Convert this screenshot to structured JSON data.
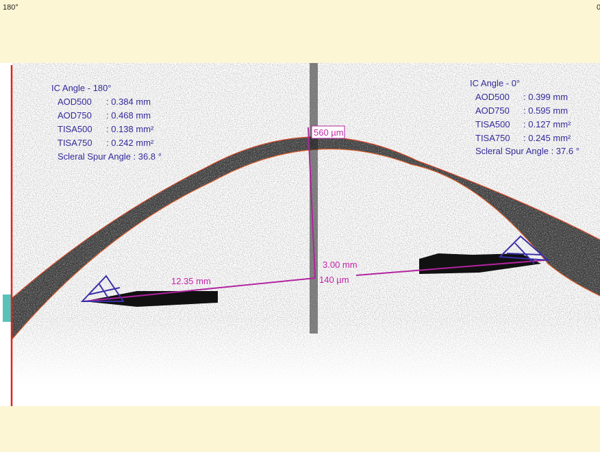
{
  "header": {
    "left_label": "180°",
    "right_label": "0"
  },
  "annotations": {
    "left": {
      "title": "IC Angle - 180°",
      "rows": [
        {
          "name": "AOD500",
          "value": ": 0.384 mm"
        },
        {
          "name": "AOD750",
          "value": ": 0.468 mm"
        },
        {
          "name": "TISA500",
          "value": ": 0.138 mm²"
        },
        {
          "name": "TISA750",
          "value": ": 0.242 mm²"
        }
      ],
      "spur": "Scleral Spur Angle : 36.8 °"
    },
    "right": {
      "title": "IC Angle - 0°",
      "rows": [
        {
          "name": "AOD500",
          "value": ": 0.399 mm"
        },
        {
          "name": "AOD750",
          "value": ": 0.595 mm"
        },
        {
          "name": "TISA500",
          "value": ": 0.127 mm²"
        },
        {
          "name": "TISA750",
          "value": ": 0.245 mm²"
        }
      ],
      "spur": "Scleral Spur Angle : 37.6 °"
    }
  },
  "measurements": {
    "corneal_thickness": "560 µm",
    "angle_width": "12.35 mm",
    "chamber_depth": "3.00 mm",
    "lens_vault": "140 µm"
  }
}
